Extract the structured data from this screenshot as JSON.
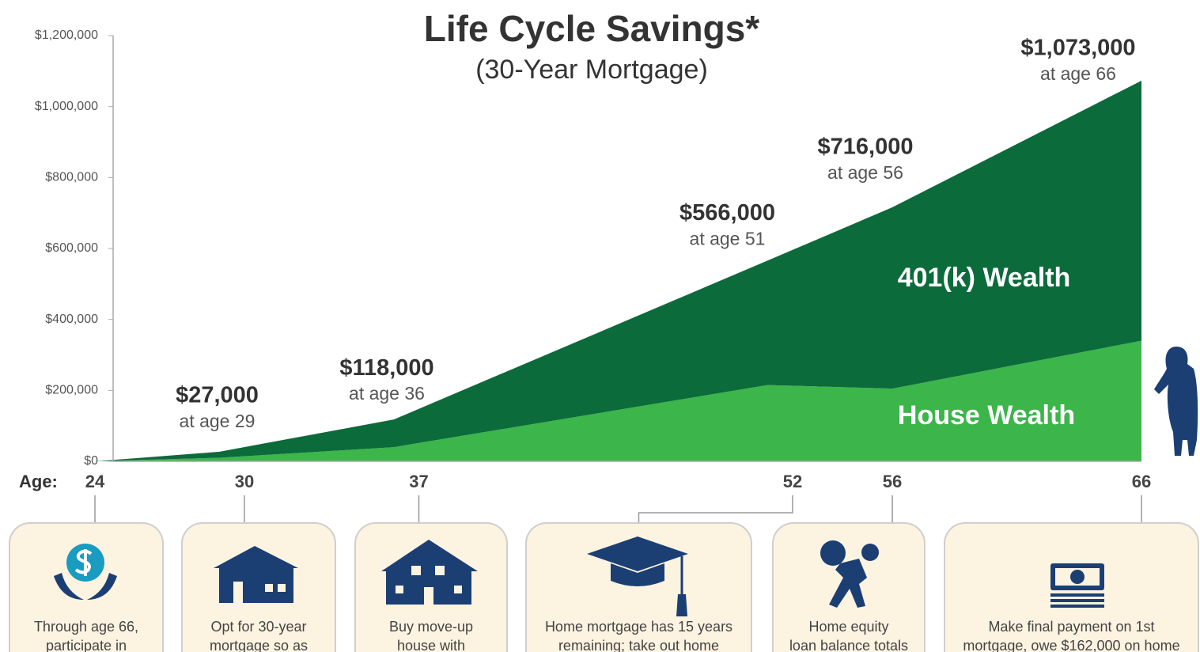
{
  "chart_data": {
    "type": "stacked_area",
    "title": "Life Cycle Savings*",
    "subtitle": "(30-Year Mortgage)",
    "x_label": "Age:",
    "x": [
      24,
      29,
      36,
      51,
      56,
      66
    ],
    "series": [
      {
        "name": "House Wealth",
        "color": "#3cb54a",
        "values": [
          0,
          10000,
          40000,
          215000,
          205000,
          340000
        ]
      },
      {
        "name": "401(k) Wealth",
        "color": "#0b6b3a",
        "values": [
          0,
          17000,
          78000,
          351000,
          511000,
          733000
        ]
      }
    ],
    "annotations": [
      {
        "x": 29,
        "value": 27000,
        "label": "$27,000",
        "note": "at age 29"
      },
      {
        "x": 36,
        "value": 118000,
        "label": "$118,000",
        "note": "at age 36"
      },
      {
        "x": 51,
        "value": 566000,
        "label": "$566,000",
        "note": "at age 51"
      },
      {
        "x": 56,
        "value": 716000,
        "label": "$716,000",
        "note": "at age 56"
      },
      {
        "x": 66,
        "value": 1073000,
        "label": "$1,073,000",
        "note": "at age 66"
      }
    ],
    "xlim": [
      24,
      66
    ],
    "xticks": [
      24,
      30,
      37,
      52,
      56,
      66
    ],
    "ylim": [
      0,
      1200000
    ],
    "yticks": [
      {
        "value": 0,
        "label": "$0"
      },
      {
        "value": 200000,
        "label": "$200,000"
      },
      {
        "value": 400000,
        "label": "$400,000"
      },
      {
        "value": 600000,
        "label": "$600,000"
      },
      {
        "value": 800000,
        "label": "$800,000"
      },
      {
        "value": 1000000,
        "label": "$1,000,000"
      },
      {
        "value": 1200000,
        "label": "$1,200,000"
      }
    ]
  },
  "milestones": [
    {
      "lines": [
        "Through age 66,",
        "participate in"
      ]
    },
    {
      "lines": [
        "Opt for 30-year",
        "mortgage so as"
      ]
    },
    {
      "lines": [
        "Buy move-up",
        "house with"
      ]
    },
    {
      "lines": [
        "Home mortgage has 15 years",
        "remaining; take out home"
      ]
    },
    {
      "lines": [
        "Home equity",
        "loan balance totals"
      ]
    },
    {
      "lines": [
        "Make final payment on 1st",
        "mortgage, owe $162,000 on home"
      ]
    }
  ]
}
